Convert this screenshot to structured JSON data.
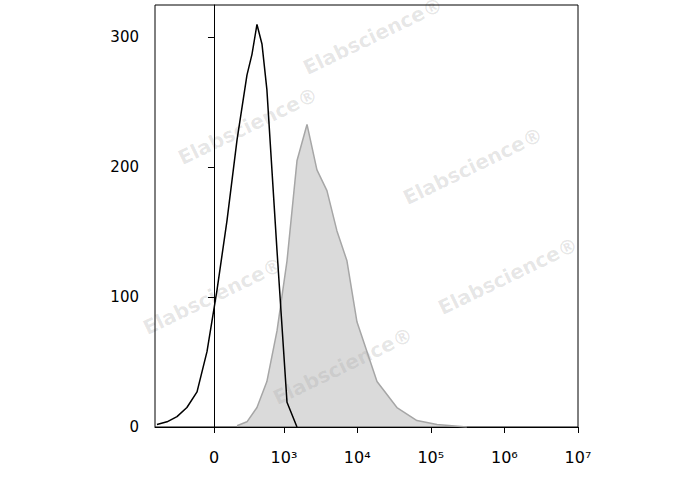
{
  "chart_data": {
    "type": "line",
    "log": "x",
    "grid": false,
    "annotations": [
      "Elabscience®"
    ],
    "xlim": [
      -700,
      10000000
    ],
    "xticks": [
      0,
      {
        "value": 1000,
        "label": "10³"
      },
      {
        "value": 10000,
        "label": "10⁴"
      },
      {
        "value": 100000,
        "label": "10⁵"
      },
      {
        "value": 1000000,
        "label": "10⁶"
      },
      {
        "value": 10000000,
        "label": "10⁷"
      }
    ],
    "ylim": [
      0,
      325
    ],
    "yticks": [
      0,
      100,
      200,
      300
    ],
    "series": [
      {
        "type": "line",
        "color": "#000000",
        "x": [
          -656,
          -467,
          -325,
          -216,
          -126,
          -50,
          21,
          95,
          178,
          278,
          338,
          406,
          484,
          572,
          799,
          1103,
          1514
        ],
        "values": [
          2,
          4,
          8,
          15,
          27,
          58,
          105,
          159,
          221,
          271,
          287,
          310,
          295,
          260,
          136,
          19,
          0
        ]
      },
      {
        "type": "area",
        "color": "#a6a6a6",
        "x": [
          178,
          278,
          406,
          572,
          799,
          1103,
          1514,
          2077,
          2838,
          3882,
          5312,
          7264,
          9933,
          18600,
          34700,
          64900,
          121600,
          309000
        ],
        "values": [
          1,
          4,
          15,
          35,
          74,
          128,
          205,
          233,
          198,
          182,
          151,
          128,
          81,
          35,
          15,
          5,
          2,
          0
        ]
      }
    ]
  }
}
